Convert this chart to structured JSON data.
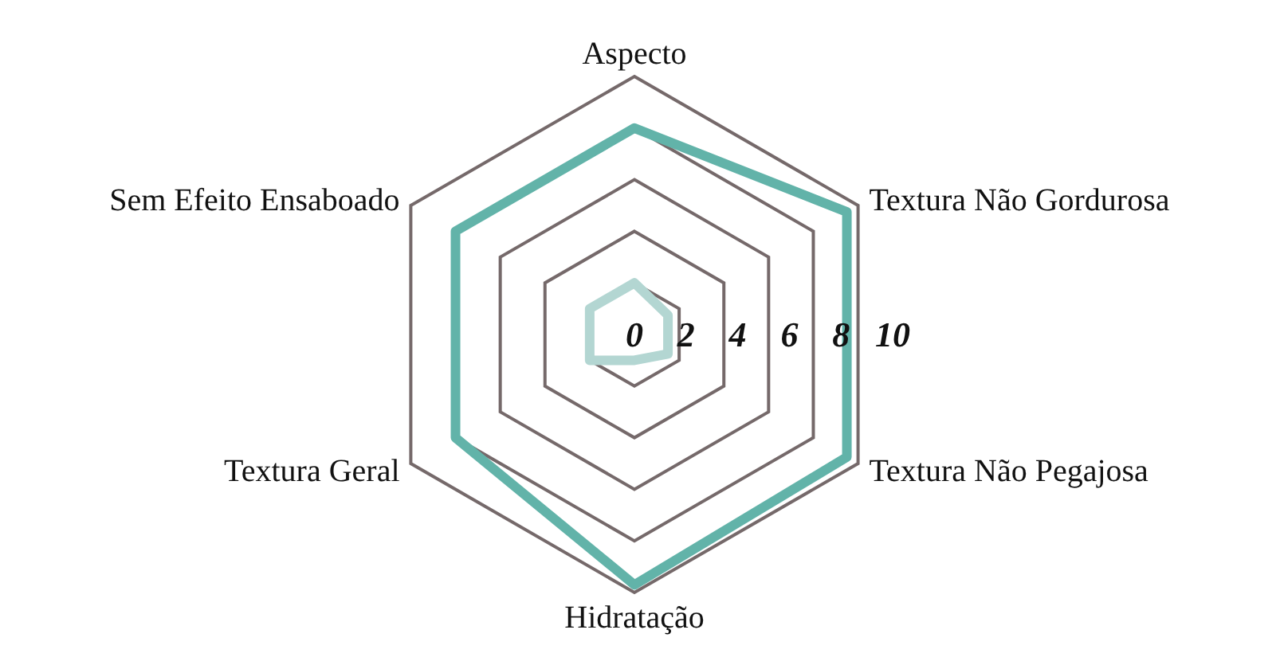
{
  "chart_data": {
    "type": "radar",
    "categories": [
      "Aspecto",
      "Textura Não Gordurosa",
      "Textura Não Pegajosa",
      "Hidratação",
      "Textura Geral",
      "Sem Efeito Ensaboado"
    ],
    "series": [
      {
        "color": "#62b3a9",
        "values": [
          8,
          9.5,
          9.5,
          9.7,
          8,
          8
        ]
      },
      {
        "color": "#b3d6d2",
        "values": [
          2,
          1.5,
          1.5,
          1,
          2,
          2
        ]
      }
    ],
    "ylim": [
      0,
      10
    ],
    "yticks": [
      0,
      2,
      4,
      6,
      8,
      10
    ],
    "grid": true
  }
}
